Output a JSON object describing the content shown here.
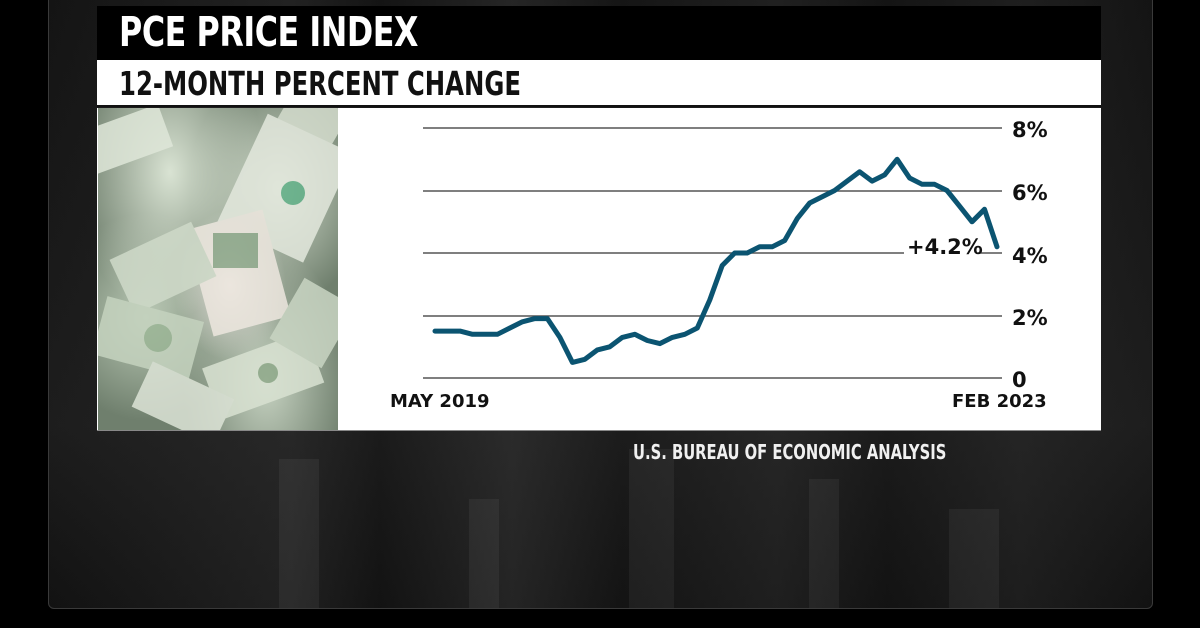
{
  "header": {
    "title": "PCE PRICE INDEX",
    "subtitle": "12-MONTH PERCENT CHANGE"
  },
  "source": "U.S. BUREAU OF ECONOMIC ANALYSIS",
  "photo": {
    "description": "pile of crumpled U.S. dollar bills"
  },
  "colors": {
    "line": "#0b5471",
    "grid": "#555555",
    "title_bg": "#000000",
    "panel_bg": "#ffffff"
  },
  "chart_data": {
    "type": "line",
    "title": "PCE PRICE INDEX",
    "subtitle": "12-MONTH PERCENT CHANGE",
    "xlabel": "",
    "ylabel": "",
    "x_start_label": "MAY 2019",
    "x_end_label": "FEB 2023",
    "y_ticks": [
      "0",
      "2%",
      "4%",
      "6%",
      "8%"
    ],
    "ylim": [
      0,
      8
    ],
    "grid": true,
    "legend": null,
    "annotation": "+4.2%",
    "source": "U.S. BUREAU OF ECONOMIC ANALYSIS",
    "x": [
      "May 2019",
      "Jun 2019",
      "Jul 2019",
      "Aug 2019",
      "Sep 2019",
      "Oct 2019",
      "Nov 2019",
      "Dec 2019",
      "Jan 2020",
      "Feb 2020",
      "Mar 2020",
      "Apr 2020",
      "May 2020",
      "Jun 2020",
      "Jul 2020",
      "Aug 2020",
      "Sep 2020",
      "Oct 2020",
      "Nov 2020",
      "Dec 2020",
      "Jan 2021",
      "Feb 2021",
      "Mar 2021",
      "Apr 2021",
      "May 2021",
      "Jun 2021",
      "Jul 2021",
      "Aug 2021",
      "Sep 2021",
      "Oct 2021",
      "Nov 2021",
      "Dec 2021",
      "Jan 2022",
      "Feb 2022",
      "Mar 2022",
      "Apr 2022",
      "May 2022",
      "Jun 2022",
      "Jul 2022",
      "Aug 2022",
      "Sep 2022",
      "Oct 2022",
      "Nov 2022",
      "Dec 2022",
      "Jan 2023",
      "Feb 2023"
    ],
    "series": [
      {
        "name": "PCE 12-month % change",
        "values": [
          1.5,
          1.5,
          1.5,
          1.4,
          1.4,
          1.4,
          1.6,
          1.8,
          1.9,
          1.9,
          1.3,
          0.5,
          0.6,
          0.9,
          1.0,
          1.3,
          1.4,
          1.2,
          1.1,
          1.3,
          1.4,
          1.6,
          2.5,
          3.6,
          4.0,
          4.0,
          4.2,
          4.2,
          4.4,
          5.1,
          5.6,
          5.8,
          6.0,
          6.3,
          6.6,
          6.3,
          6.5,
          7.0,
          6.4,
          6.2,
          6.2,
          6.0,
          5.5,
          5.0,
          5.4,
          4.2
        ]
      }
    ]
  }
}
